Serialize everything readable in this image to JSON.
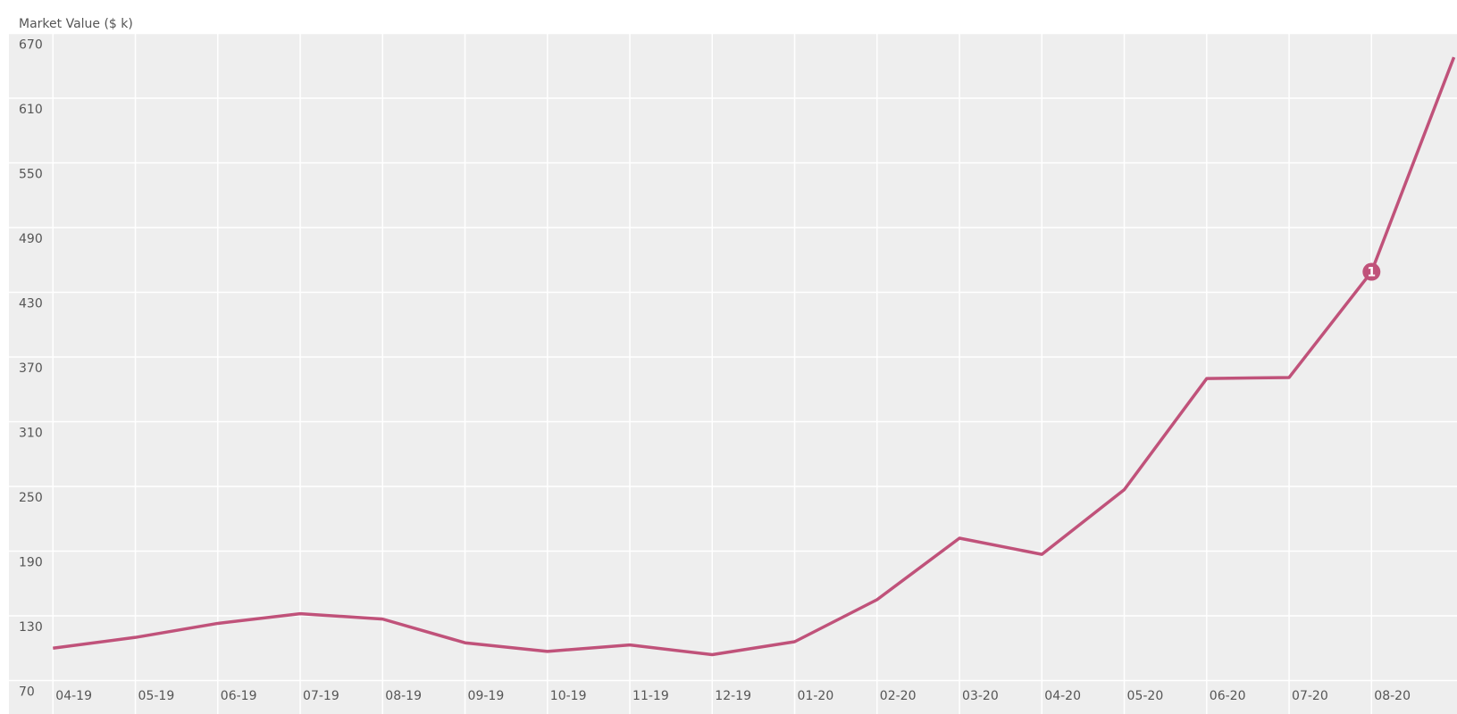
{
  "chart_data": {
    "type": "line",
    "y_label": "Market Value ($ k)",
    "categories": [
      "04-19",
      "05-19",
      "06-19",
      "07-19",
      "08-19",
      "09-19",
      "10-19",
      "11-19",
      "12-19",
      "01-20",
      "02-20",
      "03-20",
      "04-20",
      "05-20",
      "06-20",
      "07-20",
      "08-20",
      null
    ],
    "series": [
      {
        "name": "Market Value",
        "color": "#c0527a",
        "values": [
          100,
          110,
          123,
          132,
          127,
          105,
          97,
          103,
          94,
          106,
          145,
          202,
          187,
          247,
          350,
          351,
          449,
          648
        ]
      }
    ],
    "ylim": [
      70,
      670
    ],
    "yticks": [
      70,
      130,
      190,
      250,
      310,
      370,
      430,
      490,
      550,
      610,
      670
    ],
    "grid": true,
    "annotations": [
      {
        "category": "08-20",
        "label": "1"
      }
    ]
  }
}
